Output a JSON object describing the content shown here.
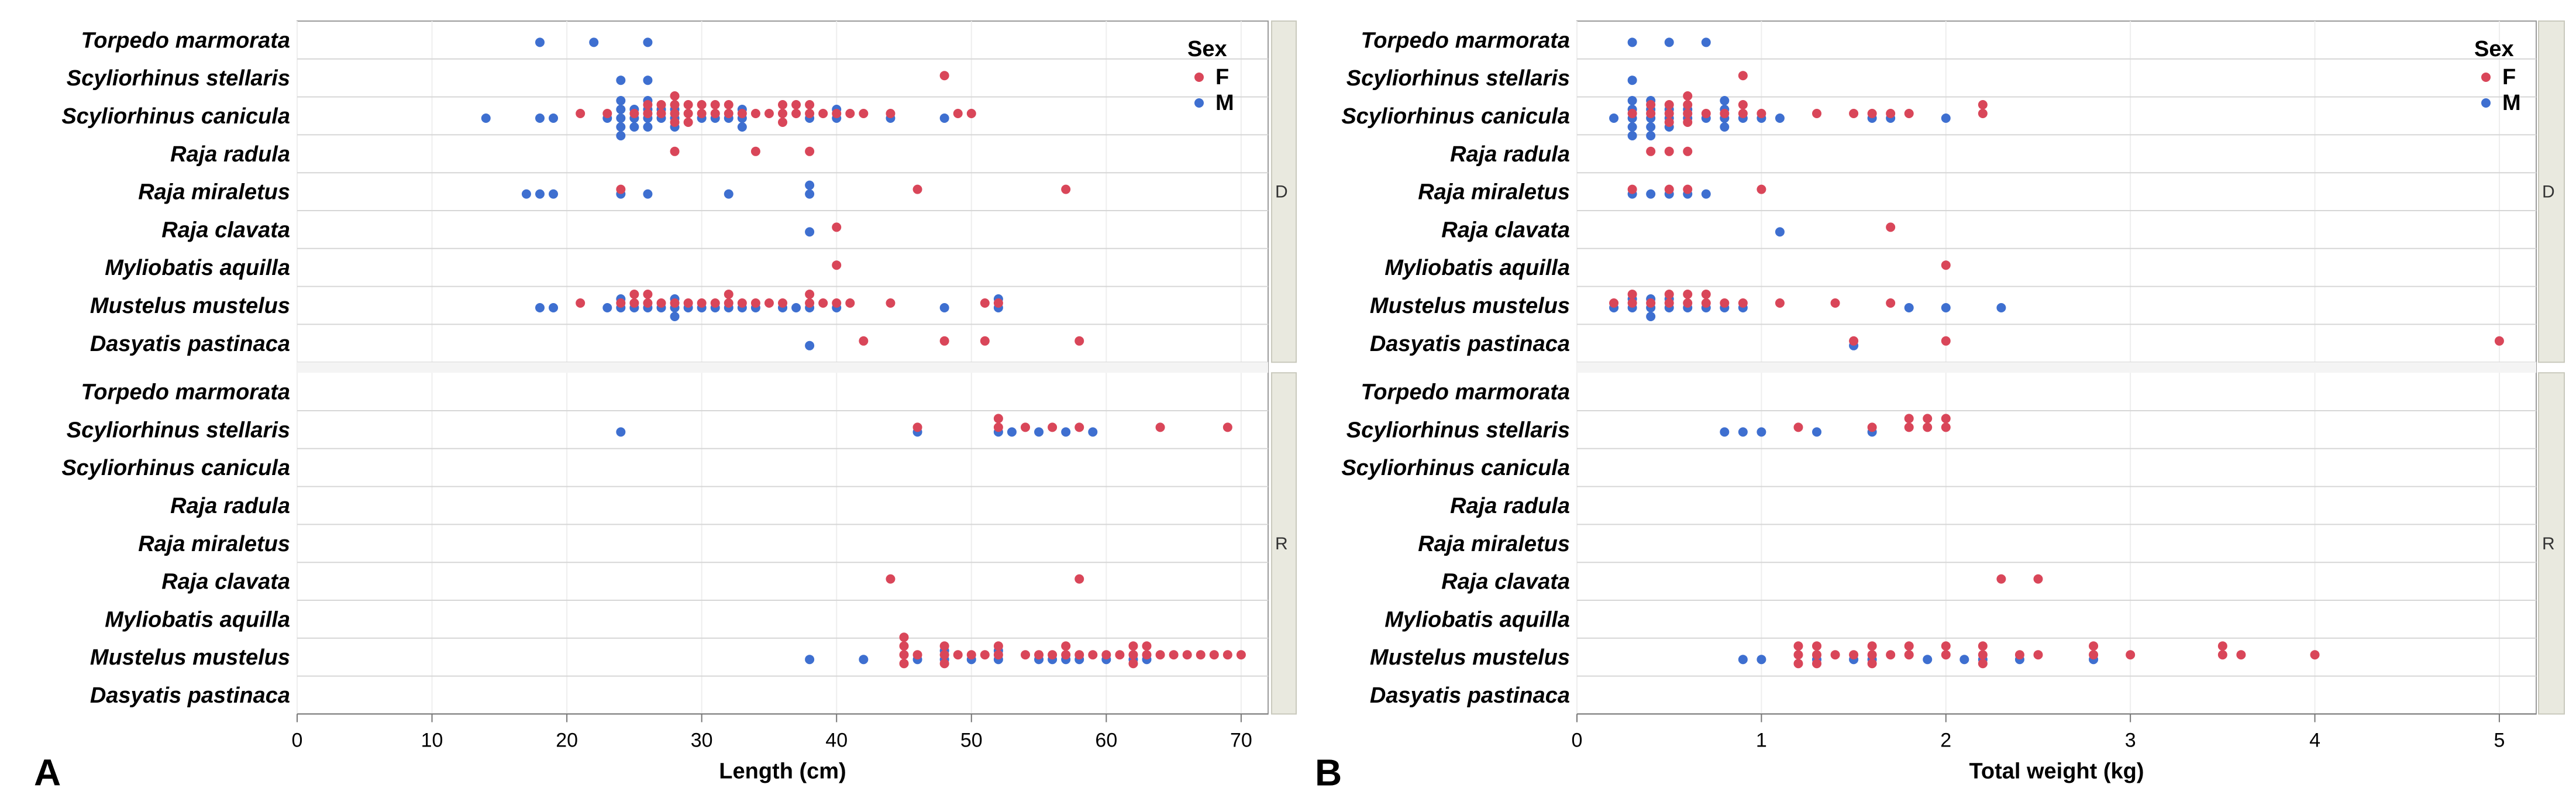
{
  "colors": {
    "F": "#d94659",
    "M": "#3e6fd0",
    "grid": "#d6d6d6",
    "frame": "#9a9a9a",
    "strip": "#e9e9df"
  },
  "legend": {
    "title": "Sex",
    "entries": [
      "F",
      "M"
    ]
  },
  "group_labels": [
    "D",
    "R"
  ],
  "chart_data": [
    {
      "panel": "A",
      "type": "scatter",
      "xlabel": "Length (cm)",
      "xlim": [
        0,
        72
      ],
      "xticks": [
        0,
        10,
        20,
        30,
        40,
        50,
        60,
        70
      ],
      "species": [
        "Torpedo marmorata",
        "Scyliorhinus stellaris",
        "Scyliorhinus canicula",
        "Raja radula",
        "Raja miraletus",
        "Raja clavata",
        "Myliobatis aquilla",
        "Mustelus mustelus",
        "Dasyatis pastinaca"
      ],
      "groups": [
        {
          "label": "D",
          "points": [
            {
              "sp": 0,
              "sex": "M",
              "x": [
                18,
                22,
                26
              ]
            },
            {
              "sp": 1,
              "sex": "F",
              "x": [
                48
              ]
            },
            {
              "sp": 1,
              "sex": "M",
              "x": [
                24,
                26
              ]
            },
            {
              "sp": 2,
              "sex": "M",
              "x": [
                14,
                18,
                19,
                23,
                24,
                24,
                24,
                24,
                24,
                25,
                25,
                25,
                26,
                26,
                26,
                26,
                27,
                27,
                28,
                28,
                28,
                30,
                31,
                32,
                33,
                33,
                33,
                38,
                40,
                40,
                44,
                48
              ]
            },
            {
              "sp": 2,
              "sex": "F",
              "x": [
                21,
                23,
                25,
                26,
                26,
                27,
                27,
                28,
                28,
                28,
                28,
                29,
                29,
                29,
                30,
                30,
                31,
                31,
                32,
                32,
                33,
                34,
                35,
                36,
                36,
                36,
                37,
                37,
                38,
                38,
                39,
                40,
                41,
                42,
                44,
                49,
                50
              ]
            },
            {
              "sp": 3,
              "sex": "F",
              "x": [
                28,
                34,
                38
              ]
            },
            {
              "sp": 4,
              "sex": "M",
              "x": [
                17,
                18,
                19,
                24,
                26,
                32,
                38,
                38
              ]
            },
            {
              "sp": 4,
              "sex": "F",
              "x": [
                24,
                46,
                57
              ]
            },
            {
              "sp": 5,
              "sex": "M",
              "x": [
                38
              ]
            },
            {
              "sp": 5,
              "sex": "F",
              "x": [
                40
              ]
            },
            {
              "sp": 6,
              "sex": "F",
              "x": [
                40
              ]
            },
            {
              "sp": 7,
              "sex": "M",
              "x": [
                18,
                19,
                23,
                24,
                24,
                25,
                26,
                27,
                28,
                28,
                28,
                29,
                30,
                31,
                32,
                33,
                34,
                36,
                37,
                38,
                40,
                48,
                52,
                52
              ]
            },
            {
              "sp": 7,
              "sex": "F",
              "x": [
                21,
                24,
                25,
                25,
                26,
                26,
                27,
                28,
                29,
                30,
                31,
                32,
                32,
                33,
                34,
                35,
                36,
                38,
                38,
                39,
                40,
                41,
                44,
                51,
                52
              ]
            },
            {
              "sp": 8,
              "sex": "M",
              "x": [
                38
              ]
            },
            {
              "sp": 8,
              "sex": "F",
              "x": [
                42,
                48,
                51,
                58
              ]
            }
          ]
        },
        {
          "label": "R",
          "points": [
            {
              "sp": 1,
              "sex": "M",
              "x": [
                24,
                46,
                52,
                53,
                55,
                57,
                59
              ]
            },
            {
              "sp": 1,
              "sex": "F",
              "x": [
                46,
                52,
                52,
                54,
                56,
                58,
                64,
                69
              ]
            },
            {
              "sp": 5,
              "sex": "F",
              "x": [
                44,
                58
              ]
            },
            {
              "sp": 7,
              "sex": "M",
              "x": [
                38,
                42,
                46,
                48,
                48,
                50,
                52,
                52,
                55,
                56,
                57,
                58,
                60,
                62,
                63
              ]
            },
            {
              "sp": 7,
              "sex": "F",
              "x": [
                45,
                45,
                45,
                45,
                46,
                48,
                48,
                48,
                49,
                50,
                51,
                52,
                52,
                54,
                55,
                56,
                57,
                57,
                58,
                59,
                60,
                61,
                62,
                62,
                62,
                63,
                63,
                64,
                65,
                66,
                67,
                68,
                69,
                70
              ]
            }
          ]
        }
      ]
    },
    {
      "panel": "B",
      "type": "scatter",
      "xlabel": "Total weight (kg)",
      "xlim": [
        0,
        5.2
      ],
      "xticks": [
        0,
        1,
        2,
        3,
        4,
        5
      ],
      "species": [
        "Torpedo marmorata",
        "Scyliorhinus stellaris",
        "Scyliorhinus canicula",
        "Raja radula",
        "Raja miraletus",
        "Raja clavata",
        "Myliobatis aquilla",
        "Mustelus mustelus",
        "Dasyatis pastinaca"
      ],
      "groups": [
        {
          "label": "D",
          "points": [
            {
              "sp": 0,
              "sex": "M",
              "x": [
                0.3,
                0.5,
                0.7
              ]
            },
            {
              "sp": 1,
              "sex": "M",
              "x": [
                0.3
              ]
            },
            {
              "sp": 1,
              "sex": "F",
              "x": [
                0.9
              ]
            },
            {
              "sp": 2,
              "sex": "M",
              "x": [
                0.2,
                0.3,
                0.3,
                0.3,
                0.3,
                0.3,
                0.4,
                0.4,
                0.4,
                0.4,
                0.4,
                0.5,
                0.5,
                0.5,
                0.6,
                0.6,
                0.7,
                0.8,
                0.8,
                0.8,
                0.8,
                0.9,
                1.0,
                1.1,
                1.6,
                1.7,
                2.0
              ]
            },
            {
              "sp": 2,
              "sex": "F",
              "x": [
                0.3,
                0.4,
                0.4,
                0.5,
                0.5,
                0.5,
                0.6,
                0.6,
                0.6,
                0.6,
                0.7,
                0.8,
                0.9,
                0.9,
                1.0,
                1.3,
                1.5,
                1.6,
                1.7,
                1.8,
                2.2,
                2.2
              ]
            },
            {
              "sp": 3,
              "sex": "F",
              "x": [
                0.4,
                0.5,
                0.6
              ]
            },
            {
              "sp": 4,
              "sex": "M",
              "x": [
                0.3,
                0.4,
                0.5,
                0.6,
                0.7
              ]
            },
            {
              "sp": 4,
              "sex": "F",
              "x": [
                0.3,
                0.5,
                0.6,
                1.0
              ]
            },
            {
              "sp": 5,
              "sex": "M",
              "x": [
                1.1
              ]
            },
            {
              "sp": 5,
              "sex": "F",
              "x": [
                1.7
              ]
            },
            {
              "sp": 6,
              "sex": "F",
              "x": [
                2.0
              ]
            },
            {
              "sp": 7,
              "sex": "M",
              "x": [
                0.2,
                0.3,
                0.3,
                0.4,
                0.4,
                0.4,
                0.5,
                0.5,
                0.6,
                0.7,
                0.8,
                0.9,
                1.8,
                2.0,
                2.3
              ]
            },
            {
              "sp": 7,
              "sex": "F",
              "x": [
                0.2,
                0.3,
                0.3,
                0.4,
                0.5,
                0.5,
                0.6,
                0.6,
                0.7,
                0.7,
                0.8,
                0.9,
                1.1,
                1.4,
                1.7
              ]
            },
            {
              "sp": 8,
              "sex": "M",
              "x": [
                1.5
              ]
            },
            {
              "sp": 8,
              "sex": "F",
              "x": [
                1.5,
                2.0,
                5.0
              ]
            }
          ]
        },
        {
          "label": "R",
          "points": [
            {
              "sp": 1,
              "sex": "M",
              "x": [
                0.8,
                0.9,
                1.0,
                1.3,
                1.6
              ]
            },
            {
              "sp": 1,
              "sex": "F",
              "x": [
                1.2,
                1.6,
                1.8,
                1.8,
                1.9,
                1.9,
                2.0,
                2.0
              ]
            },
            {
              "sp": 5,
              "sex": "F",
              "x": [
                2.3,
                2.5
              ]
            },
            {
              "sp": 7,
              "sex": "M",
              "x": [
                0.9,
                1.0,
                1.3,
                1.5,
                1.6,
                1.9,
                2.1,
                2.2,
                2.4,
                2.8
              ]
            },
            {
              "sp": 7,
              "sex": "F",
              "x": [
                1.2,
                1.2,
                1.2,
                1.3,
                1.3,
                1.3,
                1.4,
                1.5,
                1.6,
                1.6,
                1.6,
                1.7,
                1.8,
                1.8,
                2.0,
                2.0,
                2.2,
                2.2,
                2.2,
                2.4,
                2.5,
                2.8,
                2.8,
                3.0,
                3.5,
                3.5,
                3.6,
                4.0
              ]
            }
          ]
        }
      ]
    }
  ]
}
